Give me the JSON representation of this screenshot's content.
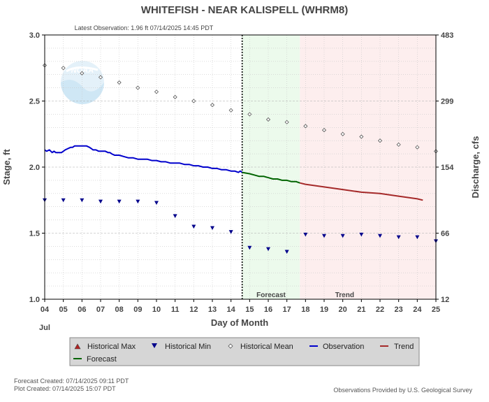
{
  "chart_data": {
    "type": "line",
    "title": "WHITEFISH - NEAR KALISPELL  (WHRM8)",
    "subtitle": "Latest Observation: 1.96 ft 07/14/2025 14:45 PDT",
    "xlabel": "Day of Month",
    "ylabel": "Stage, ft",
    "ylabel_right": "Discharge, cfs",
    "month_label": "Jul",
    "xlim": [
      4,
      25
    ],
    "ylim": [
      1.0,
      3.0
    ],
    "x_ticks": [
      "04",
      "05",
      "06",
      "07",
      "08",
      "09",
      "10",
      "11",
      "12",
      "13",
      "14",
      "15",
      "16",
      "17",
      "18",
      "19",
      "20",
      "21",
      "22",
      "23",
      "24",
      "25"
    ],
    "y_ticks": [
      "1.0",
      "1.5",
      "2.0",
      "2.5",
      "3.0"
    ],
    "y_tick_values": [
      1.0,
      1.5,
      2.0,
      2.5,
      3.0
    ],
    "right_ticks": [
      {
        "stage": 1.0,
        "label": "12"
      },
      {
        "stage": 1.5,
        "label": "66"
      },
      {
        "stage": 2.0,
        "label": "154"
      },
      {
        "stage": 2.5,
        "label": "299"
      },
      {
        "stage": 3.0,
        "label": "483"
      }
    ],
    "grid": true,
    "now_x": 14.6,
    "forecast_region": {
      "start": 14.6,
      "end": 17.7,
      "label": "Forecast"
    },
    "trend_region": {
      "start": 17.7,
      "end": 25,
      "label": "Trend"
    },
    "colors": {
      "observation": "#0000cc",
      "forecast": "#006400",
      "trend": "#a52a2a",
      "hist_min": "#00008b",
      "hist_mean": "#555555",
      "hist_max": "#b22222",
      "forecast_bg": "#ecfaec",
      "trend_bg": "#fdeeee",
      "grid": "#c8c8c8",
      "legend_bg": "#d6d6d6"
    },
    "series": [
      {
        "name": "Observation",
        "x": [
          4.0,
          4.1,
          4.25,
          4.4,
          4.5,
          4.6,
          4.75,
          4.9,
          5.0,
          5.1,
          5.25,
          5.4,
          5.5,
          5.6,
          5.75,
          5.9,
          6.0,
          6.1,
          6.25,
          6.4,
          6.5,
          6.6,
          6.75,
          6.9,
          7.0,
          7.1,
          7.25,
          7.4,
          7.5,
          7.6,
          7.75,
          7.9,
          8.0,
          8.25,
          8.5,
          8.75,
          9.0,
          9.25,
          9.5,
          9.75,
          10.0,
          10.25,
          10.5,
          10.75,
          11.0,
          11.25,
          11.5,
          11.75,
          12.0,
          12.25,
          12.5,
          12.75,
          13.0,
          13.25,
          13.5,
          13.75,
          14.0,
          14.2,
          14.4,
          14.5,
          14.6
        ],
        "y": [
          2.13,
          2.12,
          2.13,
          2.11,
          2.12,
          2.11,
          2.11,
          2.11,
          2.12,
          2.13,
          2.14,
          2.15,
          2.15,
          2.16,
          2.16,
          2.16,
          2.16,
          2.16,
          2.16,
          2.15,
          2.14,
          2.13,
          2.13,
          2.12,
          2.12,
          2.12,
          2.12,
          2.11,
          2.11,
          2.1,
          2.09,
          2.09,
          2.09,
          2.08,
          2.07,
          2.07,
          2.06,
          2.06,
          2.06,
          2.05,
          2.05,
          2.04,
          2.04,
          2.03,
          2.03,
          2.03,
          2.02,
          2.02,
          2.01,
          2.01,
          2.0,
          2.0,
          1.99,
          1.99,
          1.98,
          1.98,
          1.97,
          1.97,
          1.96,
          1.97,
          1.96
        ]
      },
      {
        "name": "Forecast",
        "x": [
          14.6,
          15.0,
          15.25,
          15.5,
          15.75,
          16.0,
          16.25,
          16.5,
          16.75,
          17.0,
          17.25,
          17.5,
          17.7
        ],
        "y": [
          1.96,
          1.95,
          1.94,
          1.93,
          1.93,
          1.92,
          1.91,
          1.91,
          1.9,
          1.9,
          1.89,
          1.89,
          1.88
        ]
      },
      {
        "name": "Trend",
        "x": [
          17.7,
          18,
          19,
          20,
          21,
          22,
          23,
          24,
          24.3
        ],
        "y": [
          1.88,
          1.87,
          1.85,
          1.83,
          1.81,
          1.8,
          1.78,
          1.76,
          1.75
        ]
      },
      {
        "name": "Historical Mean",
        "x": [
          4,
          5,
          6,
          7,
          8,
          9,
          10,
          11,
          12,
          13,
          14,
          15,
          16,
          17,
          18,
          19,
          20,
          21,
          22,
          23,
          24,
          25
        ],
        "y": [
          2.77,
          2.75,
          2.71,
          2.68,
          2.64,
          2.6,
          2.57,
          2.53,
          2.5,
          2.47,
          2.43,
          2.4,
          2.36,
          2.34,
          2.31,
          2.28,
          2.25,
          2.23,
          2.2,
          2.17,
          2.15,
          2.12
        ]
      },
      {
        "name": "Historical Min",
        "x": [
          4,
          5,
          6,
          7,
          8,
          9,
          10,
          11,
          12,
          13,
          14,
          15,
          16,
          17,
          18,
          19,
          20,
          21,
          22,
          23,
          24,
          25
        ],
        "y": [
          1.75,
          1.75,
          1.75,
          1.74,
          1.74,
          1.74,
          1.73,
          1.63,
          1.55,
          1.54,
          1.51,
          1.39,
          1.38,
          1.36,
          1.49,
          1.48,
          1.48,
          1.49,
          1.48,
          1.47,
          1.47,
          1.44
        ]
      }
    ],
    "legend": {
      "placement": "bottom",
      "items": [
        {
          "label": "Historical Max",
          "marker": "triangle-up"
        },
        {
          "label": "Historical Min",
          "marker": "triangle-down"
        },
        {
          "label": "Historical Mean",
          "marker": "diamond"
        },
        {
          "label": "Observation",
          "marker": "line"
        },
        {
          "label": "Trend",
          "marker": "line"
        },
        {
          "label": "Forecast",
          "marker": "line"
        }
      ]
    }
  },
  "footer": {
    "forecast_created": "Forecast Created: 07/14/2025 09:11 PDT",
    "plot_created": "Plot Created: 07/14/2025 15:07 PDT",
    "credit": "Observations Provided by U.S. Geological Survey"
  },
  "watermark": {
    "text": "NOAA"
  }
}
